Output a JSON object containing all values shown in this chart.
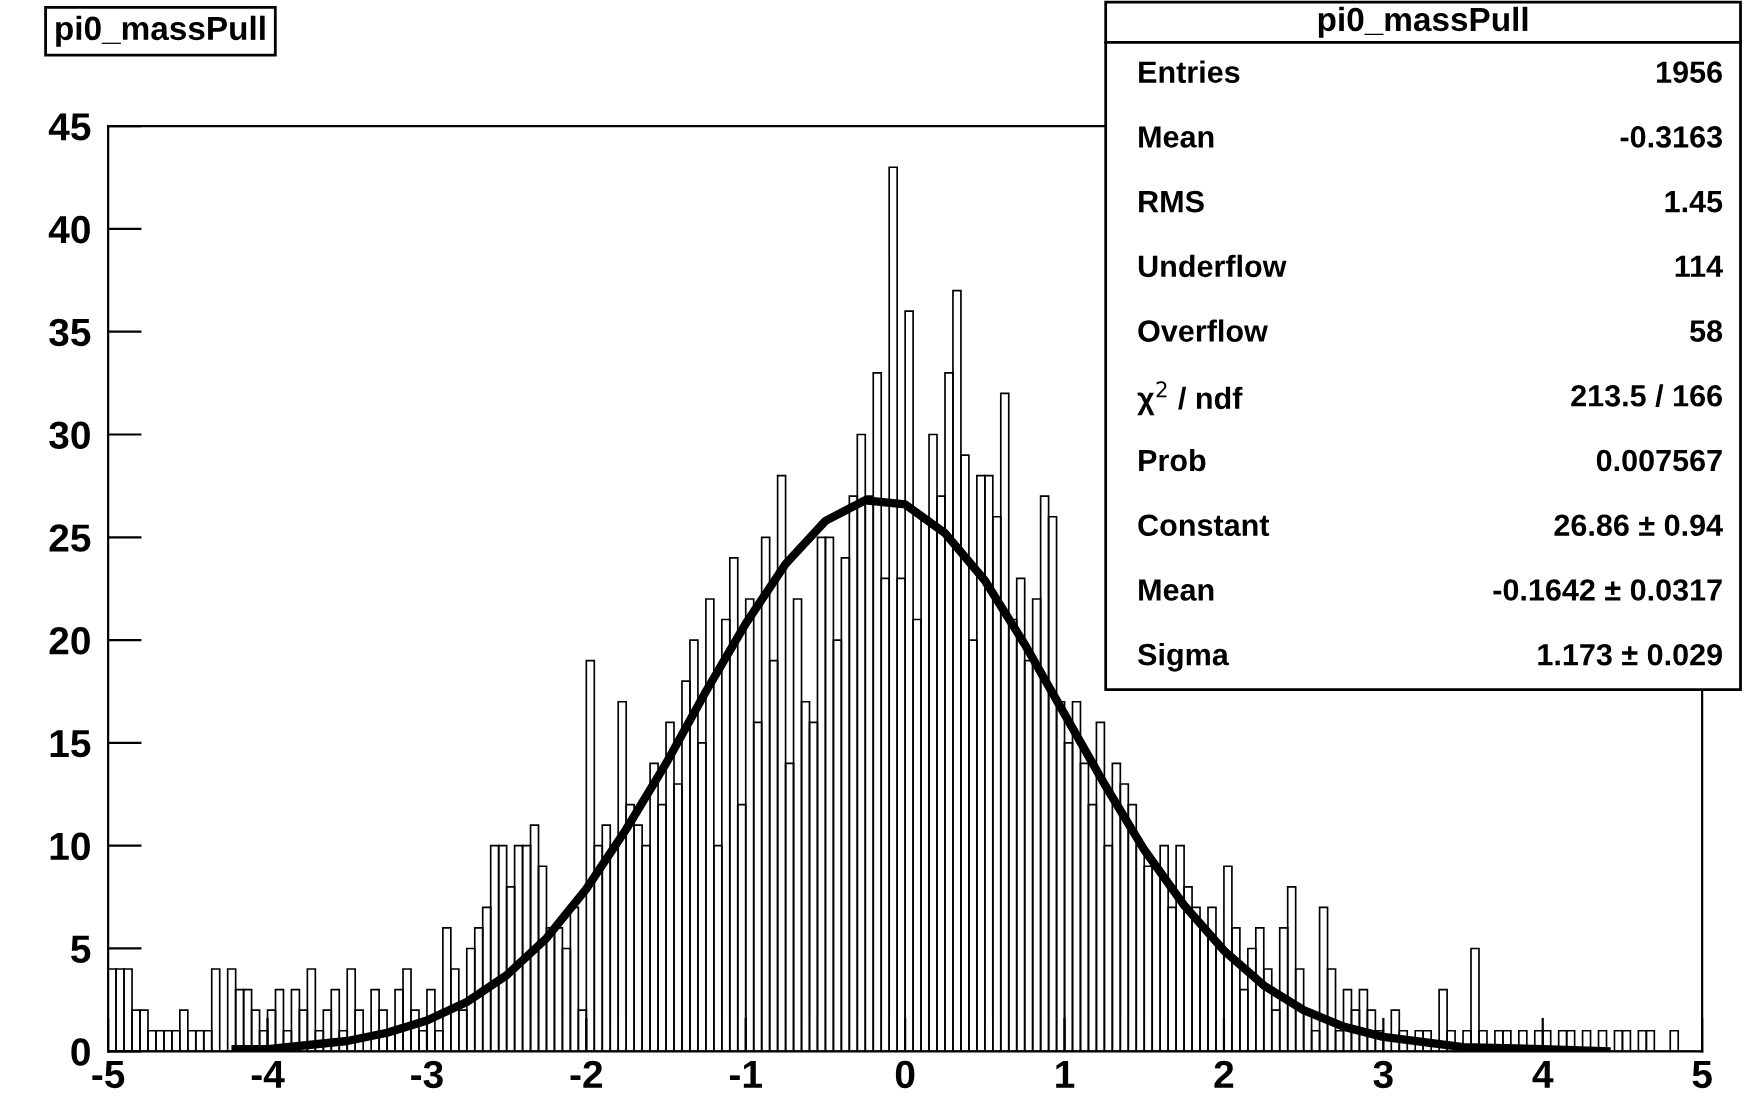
{
  "chart_data": {
    "type": "histogram",
    "title": "pi0_massPull",
    "bins": [
      -5,
      -4.95,
      -4.9,
      -4.85,
      -4.8,
      -4.75,
      -4.7,
      -4.65,
      -4.6,
      -4.55,
      -4.5,
      -4.45,
      -4.4,
      -4.35,
      -4.3,
      -4.25,
      -4.2,
      -4.15,
      -4.1,
      -4.05,
      -4,
      -3.95,
      -3.9,
      -3.85,
      -3.8,
      -3.75,
      -3.7,
      -3.65,
      -3.6,
      -3.55,
      -3.5,
      -3.45,
      -3.4,
      -3.35,
      -3.3,
      -3.25,
      -3.2,
      -3.15,
      -3.1,
      -3.05,
      -3,
      -2.95,
      -2.9,
      -2.85,
      -2.8,
      -2.75,
      -2.7,
      -2.65,
      -2.6,
      -2.55,
      -2.5,
      -2.45,
      -2.4,
      -2.35,
      -2.3,
      -2.25,
      -2.2,
      -2.15,
      -2.1,
      -2.05,
      -2,
      -1.95,
      -1.9,
      -1.85,
      -1.8,
      -1.75,
      -1.7,
      -1.65,
      -1.6,
      -1.55,
      -1.5,
      -1.45,
      -1.4,
      -1.35,
      -1.3,
      -1.25,
      -1.2,
      -1.15,
      -1.1,
      -1.05,
      -1,
      -0.95,
      -0.9,
      -0.85,
      -0.8,
      -0.75,
      -0.7,
      -0.65,
      -0.6,
      -0.55,
      -0.5,
      -0.45,
      -0.4,
      -0.35,
      -0.3,
      -0.25,
      -0.2,
      -0.15,
      -0.1,
      -0.05,
      0,
      0.05,
      0.1,
      0.15,
      0.2,
      0.25,
      0.3,
      0.35,
      0.4,
      0.45,
      0.5,
      0.55,
      0.6,
      0.65,
      0.7,
      0.75,
      0.8,
      0.85,
      0.9,
      0.95,
      1,
      1.05,
      1.1,
      1.15,
      1.2,
      1.25,
      1.3,
      1.35,
      1.4,
      1.45,
      1.5,
      1.55,
      1.6,
      1.65,
      1.7,
      1.75,
      1.8,
      1.85,
      1.9,
      1.95,
      2,
      2.05,
      2.1,
      2.15,
      2.2,
      2.25,
      2.3,
      2.35,
      2.4,
      2.45,
      2.5,
      2.55,
      2.6,
      2.65,
      2.7,
      2.75,
      2.8,
      2.85,
      2.9,
      2.95,
      3,
      3.05,
      3.1,
      3.15,
      3.2,
      3.25,
      3.3,
      3.35,
      3.4,
      3.45,
      3.5,
      3.55,
      3.6,
      3.65,
      3.7,
      3.75,
      3.8,
      3.85,
      3.9,
      3.95,
      4,
      4.05,
      4.1,
      4.15,
      4.2,
      4.25,
      4.3,
      4.35,
      4.4,
      4.45,
      4.5,
      4.55,
      4.6,
      4.65,
      4.7,
      4.75,
      4.8,
      4.85,
      4.9,
      4.95,
      5
    ],
    "series": [
      {
        "type": "histogram",
        "color": "#000000",
        "values": [
          4,
          4,
          4,
          2,
          2,
          1,
          1,
          1,
          1,
          2,
          1,
          1,
          1,
          4,
          0,
          4,
          3,
          3,
          2,
          1,
          2,
          3,
          1,
          3,
          2,
          4,
          1,
          2,
          3,
          1,
          4,
          2,
          0,
          3,
          2,
          1,
          3,
          4,
          2,
          1,
          3,
          1,
          6,
          4,
          2,
          5,
          6,
          7,
          10,
          10,
          8,
          10,
          10,
          11,
          9,
          6,
          6,
          5,
          7,
          2,
          19,
          10,
          11,
          10,
          17,
          12,
          11,
          10,
          14,
          12,
          16,
          13,
          18,
          20,
          15,
          22,
          10,
          21,
          24,
          12,
          22,
          16,
          25,
          19,
          28,
          14,
          22,
          17,
          16,
          25,
          25,
          20,
          24,
          27,
          30,
          27,
          33,
          23,
          43,
          23,
          36,
          21,
          26,
          30,
          27,
          33,
          37,
          29,
          20,
          28,
          28,
          26,
          32,
          21,
          23,
          19,
          22,
          27,
          26,
          17,
          15,
          17,
          14,
          12,
          16,
          10,
          14,
          13,
          12,
          10,
          9,
          9,
          10,
          7,
          10,
          8,
          7,
          6,
          7,
          5,
          9,
          6,
          3,
          5,
          6,
          4,
          2,
          6,
          8,
          4,
          2,
          1,
          7,
          4,
          1,
          3,
          2,
          3,
          2,
          1,
          0,
          2,
          1,
          0,
          1,
          1,
          0,
          3,
          1,
          0,
          1,
          5,
          1,
          0,
          1,
          1,
          0,
          1,
          0,
          1,
          1,
          0,
          1,
          1,
          0,
          1,
          0,
          1,
          0,
          1,
          1,
          0,
          1,
          1,
          0,
          0,
          1,
          0,
          0,
          0
        ]
      },
      {
        "type": "line",
        "color": "#000000",
        "x": [
          -4.2,
          -4,
          -3.5,
          -3.25,
          -3,
          -2.75,
          -2.5,
          -2.25,
          -2,
          -1.75,
          -1.5,
          -1.25,
          -1,
          -0.75,
          -0.5,
          -0.25,
          0,
          0.25,
          0.5,
          0.75,
          1,
          1.25,
          1.5,
          1.75,
          2,
          2.25,
          2.5,
          2.75,
          3,
          3.5,
          4,
          4.4
        ],
        "values": [
          0.1,
          0.1,
          0.5,
          0.9,
          1.5,
          2.4,
          3.7,
          5.5,
          7.9,
          10.8,
          14,
          17.5,
          20.8,
          23.7,
          25.8,
          26.8,
          26.6,
          25.2,
          22.9,
          19.8,
          16.4,
          13,
          9.8,
          7.1,
          4.9,
          3.2,
          2,
          1.2,
          0.7,
          0.2,
          0.1,
          0
        ]
      }
    ],
    "xlim": [
      -5,
      5
    ],
    "xticks": [
      -5,
      -4,
      -3,
      -2,
      -1,
      0,
      1,
      2,
      3,
      4,
      5
    ],
    "ylim": [
      0,
      45
    ],
    "yticks": [
      0,
      5,
      10,
      15,
      20,
      25,
      30,
      35,
      40,
      45
    ],
    "grid": false,
    "legend": false,
    "annotations": [
      "pi0_massPull",
      "Entries",
      "1956",
      "Mean",
      "-0.3163",
      "RMS",
      "1.45",
      "Underflow",
      "114",
      "Overflow",
      "58",
      "χ$^{2}$ / ndf",
      "213.5 / 166",
      "Prob",
      "0.007567",
      "Constant",
      "26.86 ± 0.94",
      "Mean",
      "-0.1642 ± 0.0317",
      "Sigma",
      "1.173 ± 0.029"
    ]
  }
}
